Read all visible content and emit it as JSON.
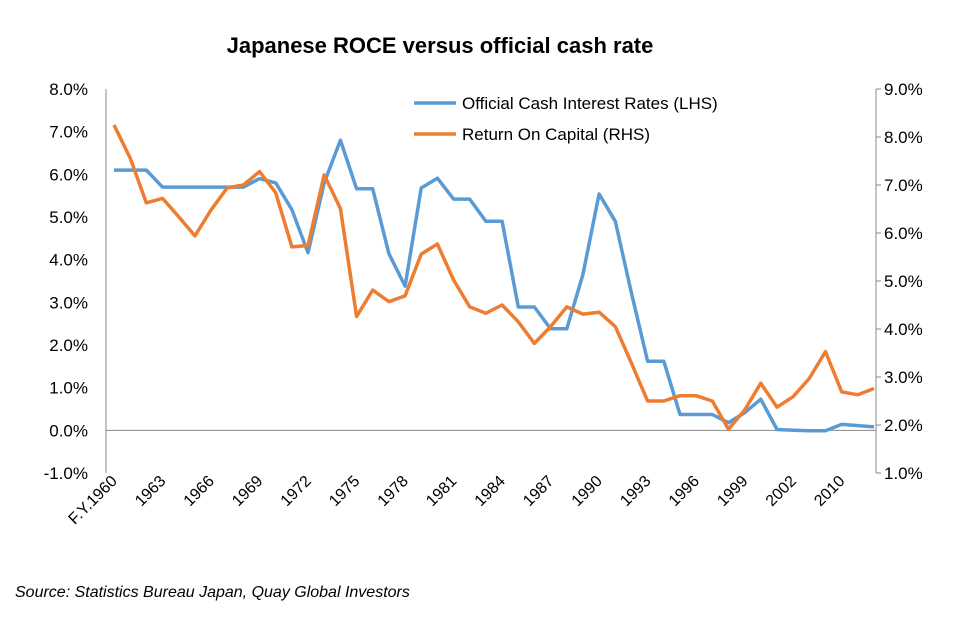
{
  "chart_data": {
    "type": "line",
    "title": "Japanese ROCE versus official cash rate",
    "x_tick_labels": [
      {
        "index": 0,
        "label": "F.Y.1960"
      },
      {
        "index": 3,
        "label": "1963"
      },
      {
        "index": 6,
        "label": "1966"
      },
      {
        "index": 9,
        "label": "1969"
      },
      {
        "index": 12,
        "label": "1972"
      },
      {
        "index": 15,
        "label": "1975"
      },
      {
        "index": 18,
        "label": "1978"
      },
      {
        "index": 21,
        "label": "1981"
      },
      {
        "index": 24,
        "label": "1984"
      },
      {
        "index": 27,
        "label": "1987"
      },
      {
        "index": 30,
        "label": "1990"
      },
      {
        "index": 33,
        "label": "1993"
      },
      {
        "index": 36,
        "label": "1996"
      },
      {
        "index": 39,
        "label": "1999"
      },
      {
        "index": 42,
        "label": "2002"
      },
      {
        "index": 45,
        "label": "2010"
      }
    ],
    "y_left": {
      "range": [
        -1,
        8
      ],
      "ticks": [
        "-1.0%",
        "0.0%",
        "1.0%",
        "2.0%",
        "3.0%",
        "4.0%",
        "5.0%",
        "6.0%",
        "7.0%",
        "8.0%"
      ]
    },
    "y_right": {
      "range": [
        1,
        9
      ],
      "ticks": [
        "1.0%",
        "2.0%",
        "3.0%",
        "4.0%",
        "5.0%",
        "6.0%",
        "7.0%",
        "8.0%",
        "9.0%"
      ]
    },
    "grid": false,
    "legend_position": "top-right",
    "series": [
      {
        "name": "Official Cash Interest Rates (LHS)",
        "axis": "left",
        "color": "#5B9BD5",
        "values": [
          6.1,
          6.1,
          6.1,
          5.7,
          5.7,
          5.7,
          5.7,
          5.7,
          5.7,
          5.9,
          5.8,
          5.17,
          4.16,
          5.8,
          6.8,
          5.66,
          5.66,
          4.14,
          3.38,
          5.68,
          5.91,
          5.42,
          5.42,
          4.9,
          4.9,
          2.89,
          2.89,
          2.38,
          2.38,
          3.65,
          5.54,
          4.9,
          3.22,
          1.62,
          1.62,
          0.37,
          0.37,
          0.37,
          0.18,
          0.41,
          0.73,
          0.02,
          0.0,
          -0.01,
          -0.01,
          0.14,
          0.11,
          0.08
        ]
      },
      {
        "name": "Return On Capital (RHS)",
        "axis": "right",
        "color": "#ED7D31",
        "values": [
          8.25,
          7.56,
          6.63,
          6.72,
          6.34,
          5.94,
          6.48,
          6.94,
          7.0,
          7.28,
          6.84,
          5.71,
          5.74,
          7.21,
          6.51,
          4.26,
          4.81,
          4.57,
          4.69,
          5.56,
          5.77,
          5.02,
          4.46,
          4.33,
          4.5,
          4.15,
          3.7,
          4.05,
          4.46,
          4.31,
          4.35,
          4.05,
          3.29,
          2.5,
          2.5,
          2.61,
          2.61,
          2.5,
          1.91,
          2.31,
          2.87,
          2.37,
          2.59,
          2.97,
          3.53,
          2.69,
          2.63,
          2.76
        ]
      }
    ]
  },
  "source": "Source: Statistics Bureau Japan, Quay Global Investors"
}
